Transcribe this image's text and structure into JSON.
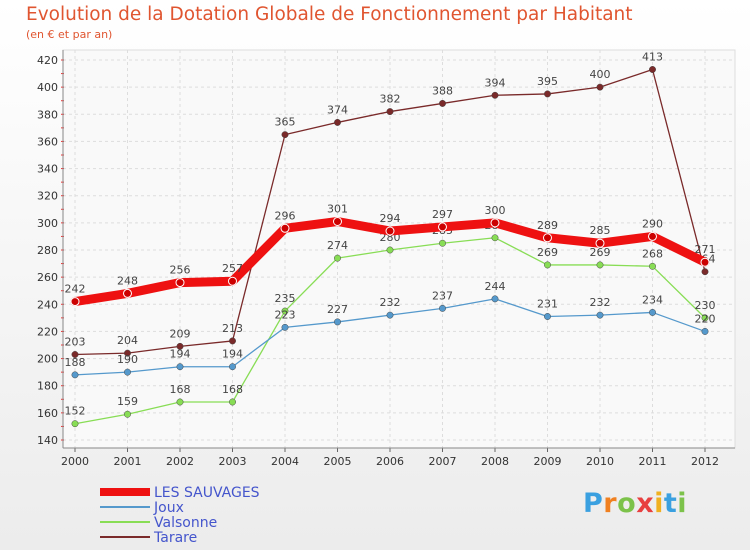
{
  "chart_data": {
    "type": "line",
    "title": "Evolution de la Dotation Globale de Fonctionnement par Habitant",
    "subtitle": "(en € et par an)",
    "categories": [
      "2000",
      "2001",
      "2002",
      "2003",
      "2004",
      "2005",
      "2006",
      "2007",
      "2008",
      "2009",
      "2010",
      "2011",
      "2012"
    ],
    "ylim": [
      140,
      420
    ],
    "yticks": [
      "140",
      "160",
      "180",
      "200",
      "220",
      "240",
      "260",
      "280",
      "300",
      "320",
      "340",
      "360",
      "380",
      "400",
      "420"
    ],
    "grid": true,
    "legend_position": "bottom-left",
    "series": [
      {
        "name": "LES SAUVAGES",
        "color": "#ee1111",
        "values": [
          242,
          248,
          256,
          257,
          296,
          301,
          294,
          297,
          300,
          289,
          285,
          290,
          271
        ]
      },
      {
        "name": "Joux",
        "color": "#5599cc",
        "values": [
          188,
          190,
          194,
          194,
          223,
          227,
          232,
          237,
          244,
          231,
          232,
          234,
          220
        ]
      },
      {
        "name": "Valsonne",
        "color": "#88dd55",
        "values": [
          152,
          159,
          168,
          168,
          235,
          274,
          280,
          285,
          289,
          269,
          269,
          268,
          230
        ]
      },
      {
        "name": "Tarare",
        "color": "#7a2a2a",
        "values": [
          203,
          204,
          209,
          213,
          365,
          374,
          382,
          388,
          394,
          395,
          400,
          413,
          264
        ]
      }
    ]
  },
  "logo": {
    "letters": [
      "P",
      "r",
      "o",
      "x",
      "i",
      "t",
      "i"
    ],
    "colors": [
      "#3aa0e0",
      "#f08020",
      "#7cc24a",
      "#e84040",
      "#f0b020",
      "#3aa0e0",
      "#7cc24a"
    ]
  }
}
